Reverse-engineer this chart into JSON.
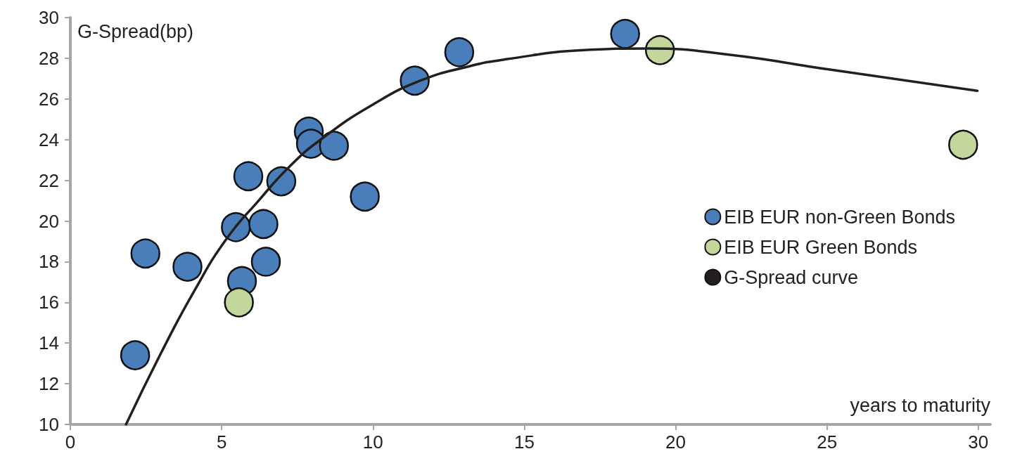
{
  "chart_data": {
    "type": "scatter",
    "xlabel": "years to maturity",
    "ylabel": "G-Spread(bp)",
    "xlim": [
      0,
      30.4
    ],
    "xticks": [
      0,
      5,
      10,
      15,
      20,
      25,
      30
    ],
    "ylim": [
      10,
      30
    ],
    "yticks": [
      10,
      12,
      14,
      16,
      18,
      20,
      22,
      24,
      26,
      28,
      30
    ],
    "grid": false,
    "legend": "right",
    "marker": "circle",
    "series": [
      {
        "name": "EIB EUR non-Green Bonds",
        "color": "#4a7ebb",
        "x": [
          2.14,
          2.48,
          3.87,
          5.67,
          5.47,
          6.38,
          6.46,
          5.88,
          6.97,
          7.88,
          7.95,
          8.71,
          9.73,
          11.38,
          12.85,
          18.33
        ],
        "values": [
          13.4,
          18.4,
          17.75,
          17.05,
          19.7,
          19.85,
          18.0,
          22.2,
          21.95,
          24.4,
          23.8,
          23.7,
          21.2,
          26.9,
          28.3,
          29.2
        ]
      },
      {
        "name": "EIB EUR Green Bonds",
        "color": "#c3d69b",
        "x": [
          5.57,
          19.48,
          29.5
        ],
        "values": [
          16.0,
          28.4,
          23.75
        ]
      },
      {
        "name": "G-Spread curve",
        "type": "line",
        "color": "#231f20",
        "marker": "none",
        "line_style": "solid",
        "x": [
          1.84,
          3.01,
          4.09,
          5.15,
          6.22,
          7.29,
          8.36,
          9.97,
          11.57,
          13.17,
          14.4,
          16.99,
          19.12,
          21.8,
          25.06,
          29.97
        ],
        "values": [
          10,
          13.55,
          16.55,
          19.1,
          21.0,
          22.75,
          24.1,
          25.7,
          26.9,
          27.6,
          27.95,
          28.4,
          28.48,
          28.17,
          27.45,
          26.4
        ]
      }
    ]
  }
}
